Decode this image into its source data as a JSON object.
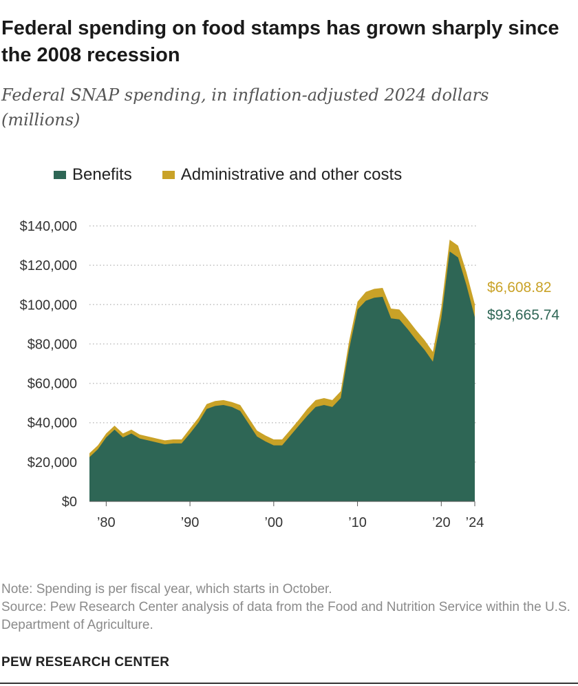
{
  "title": "Federal spending on food stamps has grown sharply since the 2008 recession",
  "subtitle": "Federal SNAP spending, in inflation-adjusted 2024 dollars (millions)",
  "legend": {
    "benefits": "Benefits",
    "admin": "Administrative and other costs"
  },
  "colors": {
    "benefits": "#2e6655",
    "admin": "#c9a227",
    "grid": "#bdbdbd",
    "text": "#333333"
  },
  "end_labels": {
    "admin": "$6,608.82",
    "benefits": "$93,665.74"
  },
  "chart_data": {
    "type": "area",
    "stacked": true,
    "x": [
      1978,
      1979,
      1980,
      1981,
      1982,
      1983,
      1984,
      1985,
      1986,
      1987,
      1988,
      1989,
      1990,
      1991,
      1992,
      1993,
      1994,
      1995,
      1996,
      1997,
      1998,
      1999,
      2000,
      2001,
      2002,
      2003,
      2004,
      2005,
      2006,
      2007,
      2008,
      2009,
      2010,
      2011,
      2012,
      2013,
      2014,
      2015,
      2016,
      2017,
      2018,
      2019,
      2020,
      2021,
      2022,
      2023,
      2024
    ],
    "series": [
      {
        "name": "Benefits",
        "values": [
          22500,
          26500,
          32500,
          36500,
          32500,
          34500,
          32000,
          31000,
          30000,
          29000,
          29500,
          29500,
          34500,
          40000,
          47000,
          48500,
          49000,
          48000,
          46000,
          39500,
          33000,
          30500,
          28500,
          28500,
          33500,
          38500,
          43500,
          48000,
          49000,
          48000,
          52500,
          77500,
          97500,
          102000,
          103500,
          104000,
          93000,
          92500,
          87500,
          82000,
          77000,
          71000,
          93000,
          127000,
          124000,
          110000,
          93665.74
        ]
      },
      {
        "name": "Administrative and other costs",
        "values": [
          2000,
          2000,
          2000,
          2000,
          2000,
          2000,
          2000,
          2000,
          2000,
          2000,
          2000,
          2000,
          2500,
          2500,
          2500,
          2500,
          2500,
          2500,
          3000,
          3000,
          3000,
          3000,
          3000,
          3000,
          3000,
          3000,
          3500,
          3500,
          3500,
          3500,
          3500,
          4000,
          4000,
          4500,
          4500,
          4500,
          5000,
          5000,
          5000,
          5000,
          5000,
          5000,
          5500,
          6000,
          6000,
          6500,
          6608.82
        ]
      }
    ],
    "ylim": [
      0,
      140000
    ],
    "yticks": [
      0,
      20000,
      40000,
      60000,
      80000,
      100000,
      120000,
      140000
    ],
    "ytick_labels": [
      "$0",
      "$20,000",
      "$40,000",
      "$60,000",
      "$80,000",
      "$100,000",
      "$120,000",
      "$140,000"
    ],
    "xticks": [
      1980,
      1990,
      2000,
      2010,
      2020,
      2024
    ],
    "xtick_labels": [
      "’80",
      "’90",
      "’00",
      "’10",
      "’20",
      "’24"
    ],
    "grid": true,
    "legend_position": "top-left"
  },
  "notes": {
    "note": "Note: Spending is per fiscal year, which starts in October.",
    "source": "Source: Pew Research Center analysis of data from the Food and Nutrition Service within the U.S. Department of Agriculture."
  },
  "brand": "PEW RESEARCH CENTER"
}
